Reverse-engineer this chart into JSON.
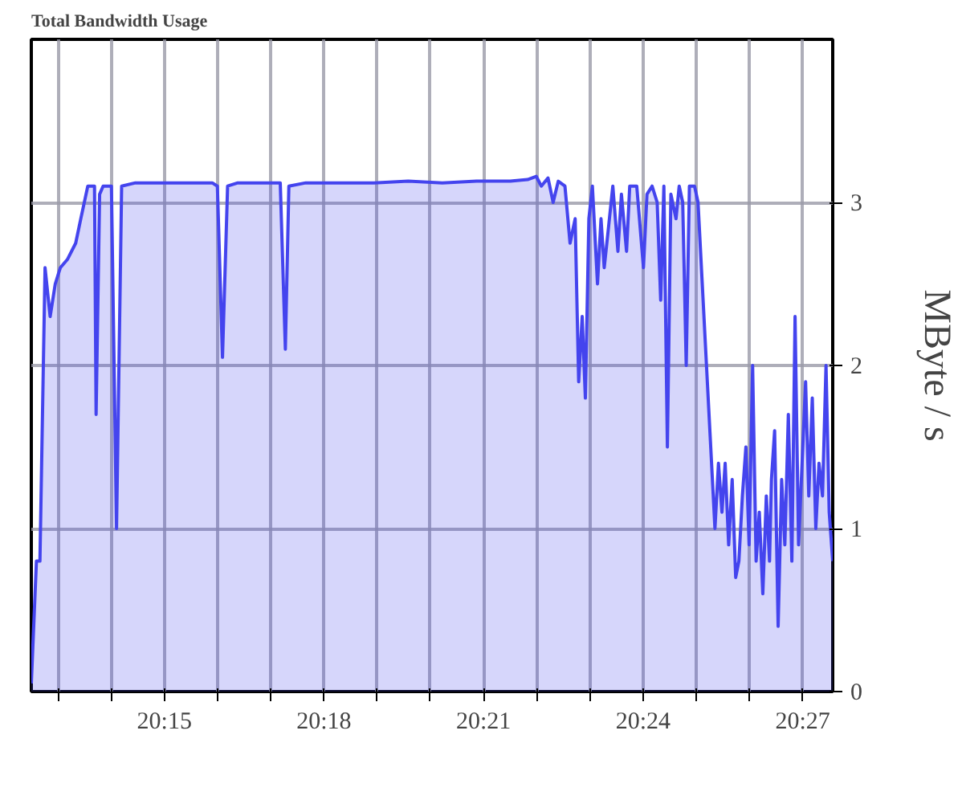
{
  "chart_data": {
    "type": "area",
    "title": "Total Bandwidth Usage",
    "ylabel": "MByte / s",
    "x": [
      20.2083,
      20.2099,
      20.211,
      20.2126,
      20.2142,
      20.2158,
      20.2174,
      20.2196,
      20.2222,
      20.2238,
      20.226,
      20.2281,
      20.2286,
      20.2297,
      20.2308,
      20.2334,
      20.235,
      20.2366,
      20.2409,
      20.2489,
      20.2569,
      20.265,
      20.2666,
      20.2682,
      20.2698,
      20.273,
      20.2863,
      20.2879,
      20.289,
      20.2943,
      20.305,
      20.3157,
      20.3264,
      20.3371,
      20.3478,
      20.3584,
      20.3638,
      20.3665,
      20.3681,
      20.3702,
      20.3718,
      20.3734,
      20.3755,
      20.3771,
      20.3787,
      20.3798,
      20.3809,
      20.3819,
      20.383,
      20.3841,
      20.3857,
      20.3868,
      20.3878,
      20.3889,
      20.3905,
      20.3921,
      20.3932,
      20.3948,
      20.3958,
      20.398,
      20.4001,
      20.4012,
      20.4028,
      20.4044,
      20.4055,
      20.4065,
      20.4076,
      20.4087,
      20.4103,
      20.4113,
      20.4124,
      20.4135,
      20.4145,
      20.4161,
      20.4172,
      20.4225,
      20.4236,
      20.4247,
      20.4257,
      20.4268,
      20.4279,
      20.429,
      20.43,
      20.4311,
      20.4322,
      20.4332,
      20.4343,
      20.4354,
      20.4364,
      20.4375,
      20.4386,
      20.4396,
      20.4402,
      20.4412,
      20.4423,
      20.4434,
      20.4444,
      20.4455,
      20.4466,
      20.4476,
      20.4487,
      20.4498,
      20.4509,
      20.4519,
      20.453,
      20.4541,
      20.4551,
      20.4562,
      20.4573,
      20.4583,
      20.4594
    ],
    "series": [
      {
        "color": "#4444ee",
        "values": [
          0.05,
          0.8,
          0.8,
          2.6,
          2.3,
          2.5,
          2.6,
          2.65,
          2.75,
          2.9,
          3.1,
          3.1,
          1.7,
          3.05,
          3.1,
          3.1,
          1.0,
          3.1,
          3.12,
          3.12,
          3.12,
          3.12,
          3.1,
          2.05,
          3.1,
          3.12,
          3.12,
          2.1,
          3.1,
          3.12,
          3.12,
          3.12,
          3.13,
          3.12,
          3.13,
          3.13,
          3.14,
          3.16,
          3.1,
          3.15,
          3.0,
          3.13,
          3.1,
          2.75,
          2.9,
          1.9,
          2.3,
          1.8,
          2.9,
          3.1,
          2.5,
          2.9,
          2.6,
          2.8,
          3.1,
          2.7,
          3.05,
          2.7,
          3.1,
          3.1,
          2.6,
          3.05,
          3.1,
          3.0,
          2.4,
          3.1,
          1.5,
          3.05,
          2.9,
          3.1,
          3.0,
          2.0,
          3.1,
          3.1,
          3.0,
          1.0,
          1.4,
          1.1,
          1.4,
          0.9,
          1.3,
          0.7,
          0.8,
          1.2,
          1.5,
          0.9,
          2.0,
          0.8,
          1.1,
          0.6,
          1.2,
          0.8,
          1.3,
          1.6,
          0.4,
          1.3,
          0.9,
          1.7,
          0.8,
          2.3,
          0.9,
          1.4,
          1.9,
          1.2,
          1.8,
          1.0,
          1.4,
          1.2,
          2.0,
          1.1,
          0.8
        ]
      }
    ],
    "xlim": [
      20.2083,
      20.4594
    ],
    "ylim": [
      0,
      4
    ],
    "xticks": [
      {
        "value": 20.2167,
        "label": null
      },
      {
        "value": 20.2333,
        "label": null
      },
      {
        "value": 20.25,
        "label": "20:15"
      },
      {
        "value": 20.2667,
        "label": null
      },
      {
        "value": 20.2833,
        "label": null
      },
      {
        "value": 20.3,
        "label": "20:18"
      },
      {
        "value": 20.3167,
        "label": null
      },
      {
        "value": 20.3333,
        "label": null
      },
      {
        "value": 20.35,
        "label": "20:21"
      },
      {
        "value": 20.3667,
        "label": null
      },
      {
        "value": 20.3833,
        "label": null
      },
      {
        "value": 20.4,
        "label": "20:24"
      },
      {
        "value": 20.4167,
        "label": null
      },
      {
        "value": 20.4333,
        "label": null
      },
      {
        "value": 20.45,
        "label": "20:27"
      }
    ],
    "yticks": [
      0,
      1,
      2,
      3
    ],
    "grid": true
  }
}
